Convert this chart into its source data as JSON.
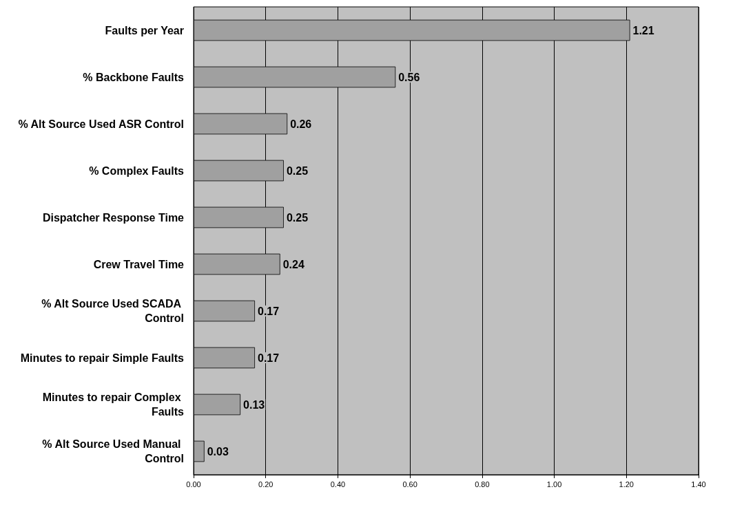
{
  "chart_data": {
    "type": "bar",
    "orientation": "horizontal",
    "categories": [
      "Faults per Year",
      "% Backbone Faults",
      "% Alt Source Used ASR Control",
      "% Complex Faults",
      "Dispatcher Response Time",
      "Crew Travel Time",
      "% Alt Source Used SCADA Control",
      "Minutes to repair Simple Faults",
      "Minutes to repair Complex Faults",
      "% Alt Source Used Manual Control"
    ],
    "values": [
      1.21,
      0.56,
      0.26,
      0.25,
      0.25,
      0.24,
      0.17,
      0.17,
      0.13,
      0.03
    ],
    "color": "#a0a0a0",
    "xlim": [
      0,
      1.4
    ],
    "xticks": [
      {
        "value": 0,
        "label": "0.00"
      },
      {
        "value": 0.2,
        "label": "0.20"
      },
      {
        "value": 0.4,
        "label": "0.40"
      },
      {
        "value": 0.6,
        "label": "0.60"
      },
      {
        "value": 0.8,
        "label": "0.80"
      },
      {
        "value": 1.0,
        "label": "1.00"
      },
      {
        "value": 1.2,
        "label": "1.20"
      },
      {
        "value": 1.4,
        "label": "1.40"
      }
    ],
    "grid": "x",
    "data_labels": true
  }
}
